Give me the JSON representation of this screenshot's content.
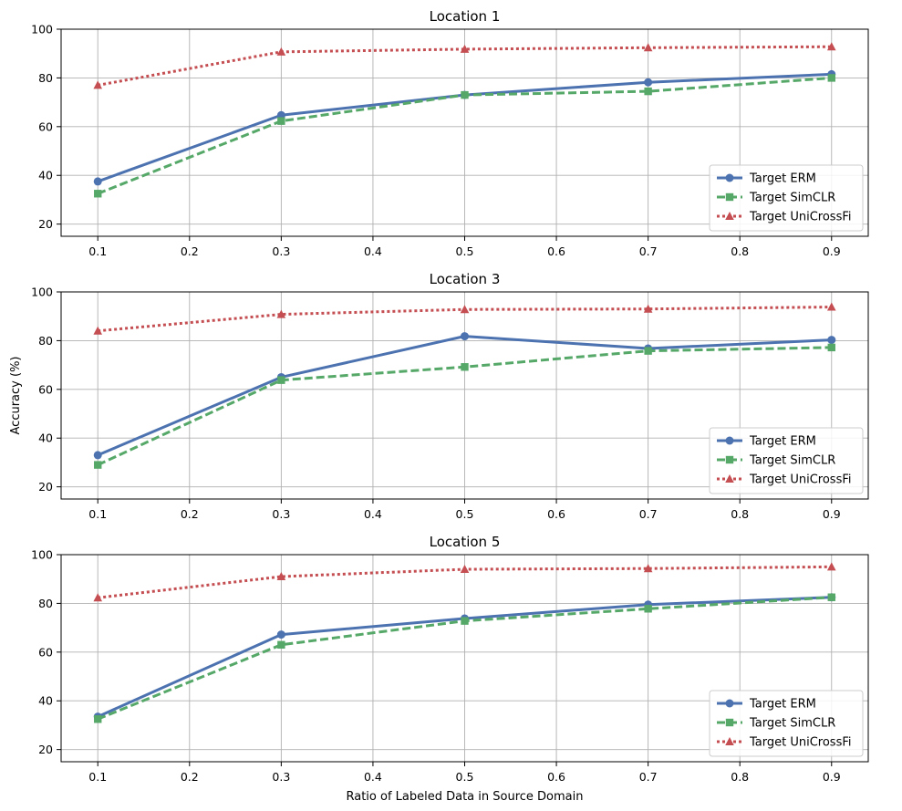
{
  "chart_data": [
    {
      "type": "line",
      "title": "Location 1",
      "x": [
        0.1,
        0.3,
        0.5,
        0.7,
        0.9
      ],
      "xticks": [
        "0.1",
        "0.2",
        "0.3",
        "0.4",
        "0.5",
        "0.6",
        "0.7",
        "0.8",
        "0.9"
      ],
      "xlim": [
        0.06,
        0.94
      ],
      "ylim": [
        15,
        100
      ],
      "yticks": [
        "20",
        "40",
        "60",
        "80",
        "100"
      ],
      "xlabel": "",
      "ylabel": "",
      "grid": true,
      "legend_position": "bottom-right",
      "series": [
        {
          "name": "Target ERM",
          "values": [
            37.5,
            64.7,
            73.0,
            78.2,
            81.5
          ]
        },
        {
          "name": "Target SimCLR",
          "values": [
            32.5,
            62.3,
            73.0,
            74.5,
            80.0
          ]
        },
        {
          "name": "Target UniCrossFi",
          "values": [
            77.0,
            90.7,
            91.8,
            92.4,
            92.8
          ]
        }
      ]
    },
    {
      "type": "line",
      "title": "Location 3",
      "x": [
        0.1,
        0.3,
        0.5,
        0.7,
        0.9
      ],
      "xticks": [
        "0.1",
        "0.2",
        "0.3",
        "0.4",
        "0.5",
        "0.6",
        "0.7",
        "0.8",
        "0.9"
      ],
      "xlim": [
        0.06,
        0.94
      ],
      "ylim": [
        15,
        100
      ],
      "yticks": [
        "20",
        "40",
        "60",
        "80",
        "100"
      ],
      "xlabel": "",
      "ylabel": "Accuracy (%)",
      "grid": true,
      "legend_position": "bottom-right",
      "series": [
        {
          "name": "Target ERM",
          "values": [
            33.0,
            65.0,
            81.8,
            76.8,
            80.3
          ]
        },
        {
          "name": "Target SimCLR",
          "values": [
            29.0,
            63.8,
            69.2,
            75.8,
            77.2
          ]
        },
        {
          "name": "Target UniCrossFi",
          "values": [
            84.0,
            90.8,
            92.8,
            93.0,
            93.8
          ]
        }
      ]
    },
    {
      "type": "line",
      "title": "Location 5",
      "x": [
        0.1,
        0.3,
        0.5,
        0.7,
        0.9
      ],
      "xticks": [
        "0.1",
        "0.2",
        "0.3",
        "0.4",
        "0.5",
        "0.6",
        "0.7",
        "0.8",
        "0.9"
      ],
      "xlim": [
        0.06,
        0.94
      ],
      "ylim": [
        15,
        100
      ],
      "yticks": [
        "20",
        "40",
        "60",
        "80",
        "100"
      ],
      "xlabel": "Ratio of Labeled Data in Source Domain",
      "ylabel": "",
      "grid": true,
      "legend_position": "bottom-right",
      "series": [
        {
          "name": "Target ERM",
          "values": [
            33.5,
            67.2,
            73.8,
            79.5,
            82.5
          ]
        },
        {
          "name": "Target SimCLR",
          "values": [
            32.5,
            63.0,
            72.8,
            77.8,
            82.5
          ]
        },
        {
          "name": "Target UniCrossFi",
          "values": [
            82.3,
            91.0,
            94.0,
            94.3,
            95.0
          ]
        }
      ]
    }
  ],
  "style": {
    "series_colors": [
      "#4c72b0",
      "#55a868",
      "#c44e52"
    ],
    "series_markers": [
      "circle-marker",
      "square-marker",
      "triangle-marker"
    ],
    "grid_color": "#b0b0b0"
  }
}
